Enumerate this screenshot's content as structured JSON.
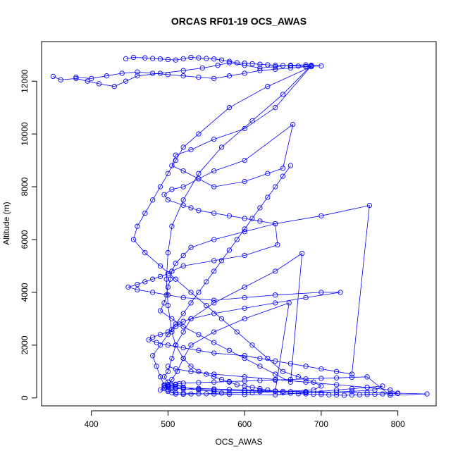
{
  "chart_data": {
    "type": "line",
    "title": "ORCAS RF01-19 OCS_AWAS",
    "xlabel": "OCS_AWAS",
    "ylabel": "Altitude (m)",
    "xlim": [
      335,
      850
    ],
    "ylim": [
      -300,
      13500
    ],
    "xticks": [
      400,
      500,
      600,
      700,
      800
    ],
    "yticks": [
      0,
      2000,
      4000,
      6000,
      8000,
      10000,
      12000
    ],
    "grid": false,
    "legend": "none",
    "series_color": "#0000ff",
    "marker": "open-circle",
    "series": [
      {
        "x": [
          350,
          360,
          380,
          395,
          410,
          430,
          445,
          460,
          490,
          520,
          545,
          565,
          580,
          600,
          620,
          640,
          660,
          680,
          687,
          640,
          600,
          560,
          530,
          510,
          505,
          520,
          540,
          560,
          600,
          630,
          650,
          663,
          600,
          560,
          540,
          520,
          505,
          495,
          500,
          520,
          530,
          540,
          560,
          580,
          600,
          620,
          640,
          643,
          600,
          560,
          520,
          505,
          500,
          490,
          480,
          470,
          460,
          448,
          460,
          480,
          500,
          520,
          560,
          600,
          640,
          700,
          725,
          680,
          640,
          600,
          560,
          530,
          520,
          515,
          510,
          505,
          500,
          490,
          480,
          475,
          485,
          500,
          520,
          540,
          560,
          600,
          620,
          640,
          660,
          680,
          700,
          720,
          740,
          763,
          700,
          640,
          600,
          560,
          530,
          520,
          510,
          505,
          503,
          500,
          498,
          495,
          490,
          505,
          520,
          540,
          560,
          580,
          600,
          620,
          640,
          660,
          675,
          640,
          600,
          560,
          530,
          520,
          510,
          505,
          500,
          495,
          500,
          510,
          520,
          540,
          560,
          580,
          600,
          620,
          640,
          658,
          600,
          560,
          530,
          520,
          512,
          505,
          500,
          495,
          490,
          500,
          510,
          520,
          540,
          560,
          580,
          600,
          640,
          680,
          720,
          740,
          760,
          780,
          770,
          740,
          700,
          680,
          660,
          640,
          620,
          600,
          580,
          560,
          540,
          520,
          510,
          505,
          500,
          495,
          500,
          505,
          510,
          515,
          520,
          540,
          560,
          580,
          600,
          620,
          640,
          660,
          680,
          700,
          720,
          740,
          760,
          790,
          838,
          800,
          760,
          720,
          680,
          640,
          600,
          560,
          540,
          520,
          510,
          505,
          500,
          497
        ],
        "y": [
          12180,
          12050,
          12100,
          12000,
          11900,
          11800,
          12000,
          12200,
          12300,
          12400,
          12500,
          12600,
          12700,
          12600,
          12500,
          12550,
          12600,
          12620,
          12580,
          11000,
          10200,
          9800,
          9400,
          9200,
          8800,
          8600,
          8300,
          8000,
          8200,
          8500,
          8700,
          10360,
          9000,
          8600,
          8300,
          8000,
          7900,
          7700,
          7500,
          7300,
          7200,
          7100,
          7000,
          6900,
          6800,
          6700,
          6600,
          5800,
          5400,
          5200,
          5000,
          4800,
          4700,
          4600,
          4500,
          4400,
          4300,
          4200,
          4100,
          4000,
          3900,
          3800,
          3700,
          3800,
          3900,
          4000,
          4000,
          3800,
          3600,
          3400,
          3200,
          3000,
          2900,
          2800,
          2700,
          2600,
          2500,
          2400,
          2300,
          2200,
          2100,
          2000,
          1900,
          1800,
          1700,
          1600,
          1500,
          1400,
          1300,
          1200,
          1100,
          1000,
          900,
          7290,
          6900,
          6600,
          6300,
          6000,
          5700,
          5400,
          5100,
          4800,
          4500,
          4200,
          3900,
          3600,
          3300,
          3000,
          2700,
          2400,
          2100,
          1800,
          1500,
          1200,
          900,
          600,
          5480,
          4800,
          4200,
          3600,
          3000,
          2500,
          2000,
          1500,
          1000,
          800,
          600,
          500,
          400,
          300,
          250,
          200,
          220,
          240,
          260,
          3600,
          3000,
          2500,
          2000,
          1500,
          1000,
          700,
          500,
          400,
          300,
          250,
          200,
          180,
          160,
          150,
          140,
          130,
          120,
          200,
          300,
          350,
          400,
          450,
          300,
          250,
          200,
          220,
          240,
          260,
          280,
          300,
          320,
          340,
          360,
          380,
          400,
          420,
          440,
          460,
          480,
          500,
          520,
          540,
          560,
          580,
          600,
          620,
          640,
          660,
          680,
          700,
          720,
          740,
          760,
          780,
          800,
          100,
          150,
          180,
          200,
          220,
          240,
          260,
          280,
          300,
          320,
          340,
          360,
          380,
          400,
          420
        ]
      },
      {
        "x": [
          445,
          455,
          470,
          480,
          490,
          500,
          510,
          520,
          530,
          540,
          550,
          560,
          570,
          580,
          590,
          600,
          610,
          620,
          630,
          640,
          650,
          660,
          670,
          680,
          687,
          630,
          580,
          540,
          520,
          510,
          500,
          490,
          480,
          470,
          460,
          455,
          470,
          490,
          510,
          530,
          550,
          570,
          590,
          610,
          630,
          650,
          670,
          690,
          700,
          690,
          650,
          610,
          570,
          550,
          530,
          520,
          510,
          505,
          500,
          495,
          490,
          485,
          480,
          490,
          500,
          510,
          520,
          530,
          540,
          550,
          560,
          570,
          580,
          590,
          600,
          610,
          620,
          630,
          640,
          650,
          660
        ],
        "y": [
          12850,
          12900,
          12880,
          12860,
          12840,
          12820,
          12800,
          12850,
          12900,
          12880,
          12860,
          12840,
          12800,
          12750,
          12700,
          12680,
          12660,
          12640,
          12620,
          12600,
          12590,
          12580,
          12570,
          12560,
          12550,
          11800,
          11000,
          10000,
          9500,
          9000,
          8500,
          8000,
          7500,
          7000,
          6500,
          6000,
          5500,
          5000,
          4500,
          4000,
          3500,
          3000,
          2500,
          2000,
          1500,
          1000,
          800,
          600,
          450,
          300,
          250,
          200,
          180,
          160,
          150,
          140,
          150,
          200,
          300,
          500,
          800,
          1200,
          1600,
          2000,
          2400,
          2800,
          3200,
          3600,
          4000,
          4400,
          4800,
          5200,
          5600,
          6000,
          6400,
          6800,
          7200,
          7600,
          8000,
          8400,
          8800
        ]
      },
      {
        "x": [
          380,
          400,
          420,
          440,
          460,
          480,
          500,
          520,
          540,
          560,
          580,
          600,
          620,
          640,
          660,
          680,
          700,
          687,
          650,
          610,
          570,
          540,
          520,
          505,
          500,
          498,
          500,
          505,
          510,
          520,
          530,
          540,
          550,
          560,
          570,
          580,
          590,
          600,
          610,
          620,
          630,
          640,
          650,
          660,
          670,
          680,
          690,
          700,
          710,
          720,
          730,
          740,
          750,
          760,
          770,
          780,
          790,
          800,
          790,
          760,
          720,
          680,
          640,
          600,
          560,
          530,
          510,
          500
        ],
        "y": [
          12150,
          12100,
          12200,
          12300,
          12350,
          12300,
          12250,
          12200,
          12150,
          12100,
          12200,
          12300,
          12400,
          12450,
          12500,
          12550,
          12580,
          12600,
          11500,
          10500,
          9500,
          8500,
          7500,
          6500,
          5500,
          4500,
          3500,
          2500,
          2000,
          1500,
          1200,
          1000,
          900,
          800,
          700,
          600,
          500,
          450,
          400,
          350,
          300,
          250,
          200,
          180,
          160,
          150,
          140,
          130,
          120,
          110,
          100,
          110,
          120,
          130,
          140,
          150,
          160,
          170,
          300,
          400,
          500,
          600,
          700,
          800,
          900,
          1000,
          1100,
          1200
        ]
      }
    ]
  }
}
